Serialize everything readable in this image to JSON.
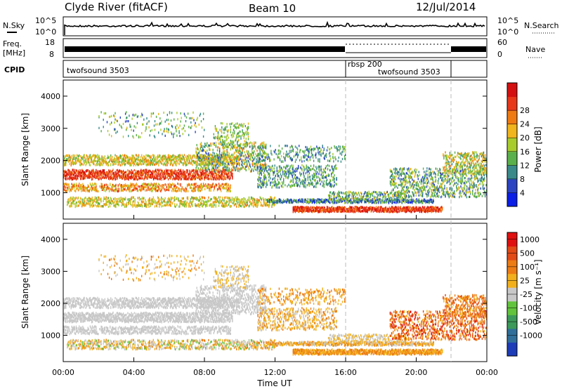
{
  "header": {
    "station": "Clyde River (fitACF)",
    "beam": "Beam 10",
    "date": "12/Jul/2014"
  },
  "strips": {
    "nsky_label": "N.Sky",
    "nsky_ticks": [
      "10^5",
      "10^0"
    ],
    "nsearch_label": "N.Search",
    "nsearch_ticks": [
      "10^5",
      "10^0"
    ],
    "freq_label_top": "Freq.",
    "freq_label_bottom": "[MHz]",
    "freq_ticks": [
      "18",
      "8"
    ],
    "nave_label": "Nave",
    "nave_ticks": [
      "60",
      "0"
    ],
    "cpid_label": "CPID",
    "cpid_segments": [
      {
        "name": "twofsound 3503"
      },
      {
        "name": "rbsp 200"
      },
      {
        "name": "twofsound 3503"
      }
    ]
  },
  "chart_data": [
    {
      "type": "heatmap",
      "title": "",
      "ylabel": "Slant Range [km]",
      "ylim": [
        180,
        4500
      ],
      "yticks": [
        "1000",
        "2000",
        "3000",
        "4000"
      ],
      "colorbar_label": "Power [dB]",
      "colorbar_ticks": [
        "4",
        "8",
        "12",
        "16",
        "20",
        "24",
        "28"
      ],
      "colors": [
        "#0a1ee6",
        "#2a44c2",
        "#3a8a8a",
        "#5ab04a",
        "#a8cc2c",
        "#f0b41c",
        "#ef7a12",
        "#e8381a",
        "#d41010"
      ]
    },
    {
      "type": "heatmap",
      "title": "",
      "ylabel": "Slant Range [km]",
      "ylim": [
        180,
        4500
      ],
      "yticks": [
        "1000",
        "2000",
        "3000",
        "4000"
      ],
      "xlabel": "Time UT",
      "xticks": [
        "00:00",
        "04:00",
        "08:00",
        "12:00",
        "16:00",
        "20:00",
        "00:00"
      ],
      "colorbar_label": "Velocity [m s⁻¹]",
      "colorbar_ticks": [
        "1000",
        "500",
        "100",
        "25",
        "-25",
        "-100",
        "-500",
        "-1000"
      ],
      "colors": [
        "#1d3cb8",
        "#2f6f9a",
        "#3c9a5a",
        "#62c43c",
        "#c8c8c8",
        "#f2b01c",
        "#ec7c14",
        "#e24a16",
        "#e01010"
      ]
    }
  ]
}
